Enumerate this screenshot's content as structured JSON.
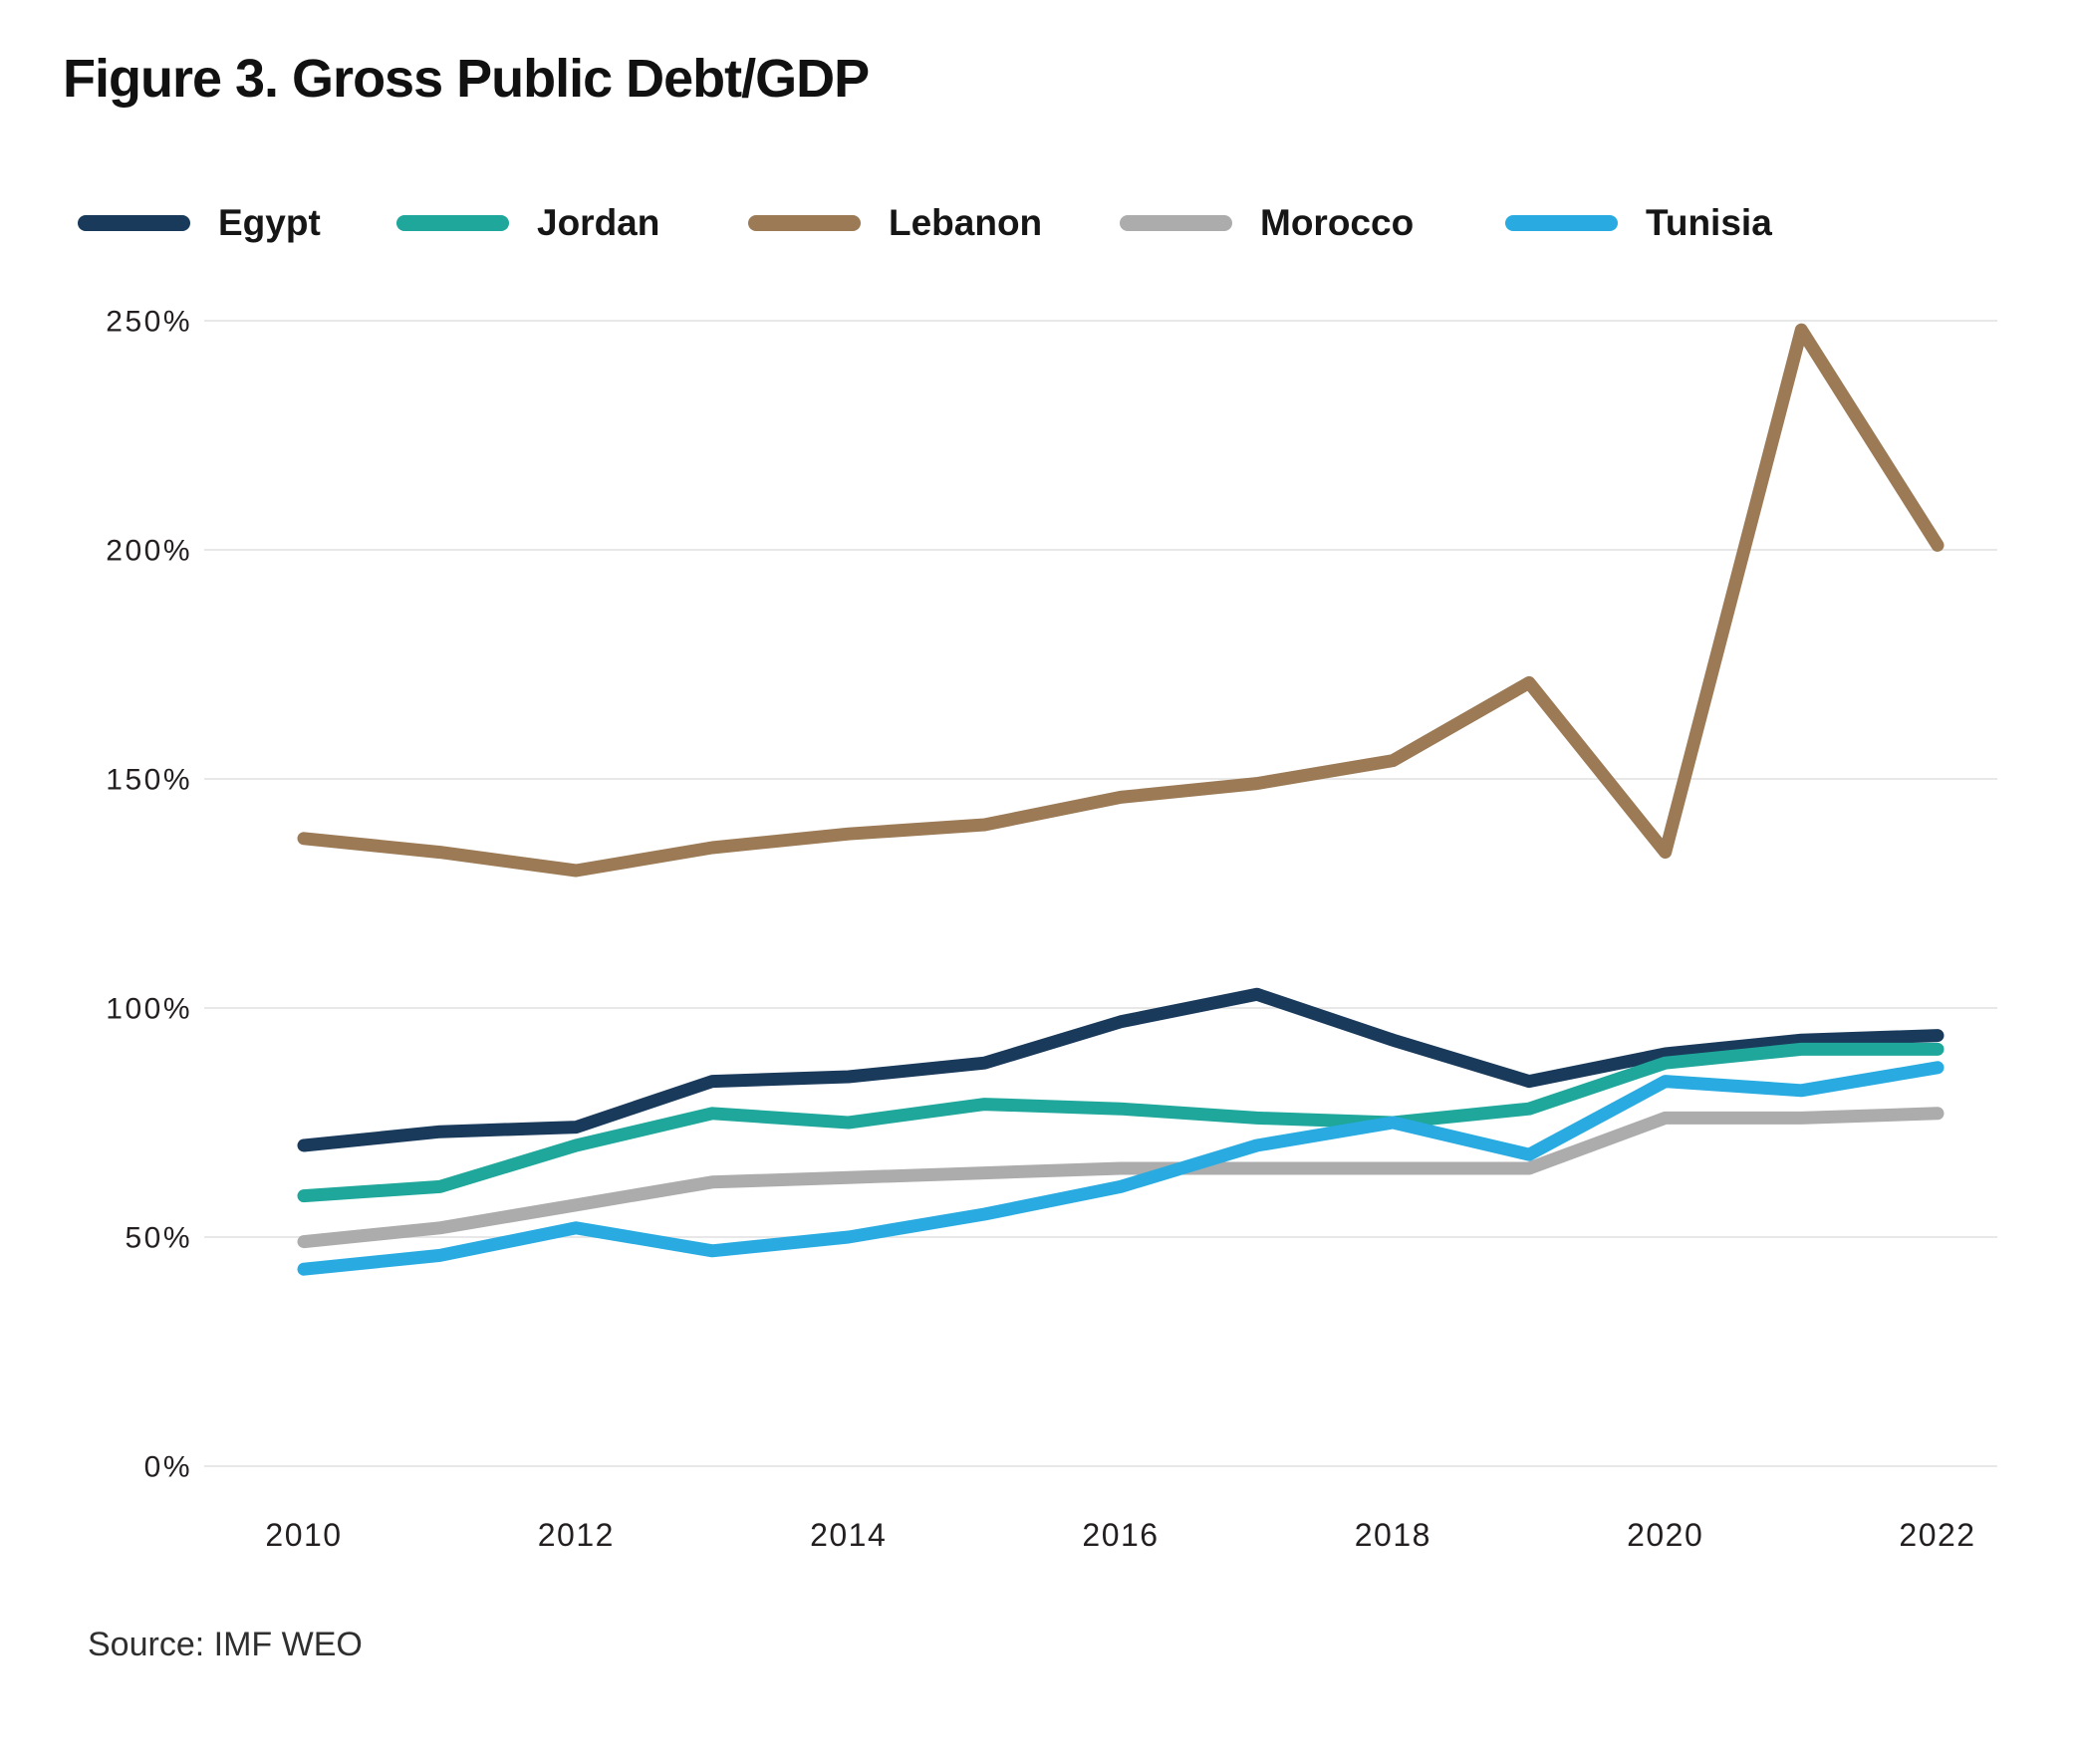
{
  "figure": {
    "title": "Figure 3. Gross Public Debt/GDP",
    "source": "Source: IMF WEO"
  },
  "colors": {
    "egypt": "#1A3A5C",
    "jordan": "#1FA79B",
    "lebanon": "#9B7A55",
    "morocco": "#ACACAC",
    "tunisia": "#29ABE2",
    "gridline": "#E8E8E8",
    "axis_text": "#231F20"
  },
  "chart_data": {
    "type": "line",
    "title": "Figure 3. Gross Public Debt/GDP",
    "x": [
      2010,
      2011,
      2012,
      2013,
      2014,
      2015,
      2016,
      2017,
      2018,
      2019,
      2020,
      2021,
      2022
    ],
    "x_tick_labels": [
      "2010",
      "2012",
      "2014",
      "2016",
      "2018",
      "2020",
      "2022"
    ],
    "y_ticks": [
      0,
      50,
      100,
      150,
      200,
      250
    ],
    "y_tick_suffix": "%",
    "ylim": [
      0,
      250
    ],
    "xlabel": "",
    "ylabel": "",
    "grid": "horizontal",
    "legend_position": "top",
    "series": [
      {
        "name": "Egypt",
        "color": "#1A3A5C",
        "values": [
          70,
          73,
          74,
          84,
          85,
          88,
          97,
          103,
          93,
          84,
          90,
          93,
          94
        ]
      },
      {
        "name": "Jordan",
        "color": "#1FA79B",
        "values": [
          59,
          61,
          70,
          77,
          75,
          79,
          78,
          76,
          75,
          78,
          88,
          91,
          91
        ]
      },
      {
        "name": "Lebanon",
        "color": "#9B7A55",
        "values": [
          137,
          134,
          130,
          135,
          138,
          140,
          146,
          149,
          154,
          171,
          134,
          248,
          201
        ]
      },
      {
        "name": "Morocco",
        "color": "#ACACAC",
        "values": [
          49,
          52,
          57,
          62,
          63,
          64,
          65,
          65,
          65,
          65,
          76,
          76,
          77
        ]
      },
      {
        "name": "Tunisia",
        "color": "#29ABE2",
        "values": [
          43,
          46,
          52,
          47,
          50,
          55,
          61,
          70,
          75,
          68,
          84,
          82,
          87
        ]
      }
    ],
    "source": "Source: IMF WEO"
  }
}
